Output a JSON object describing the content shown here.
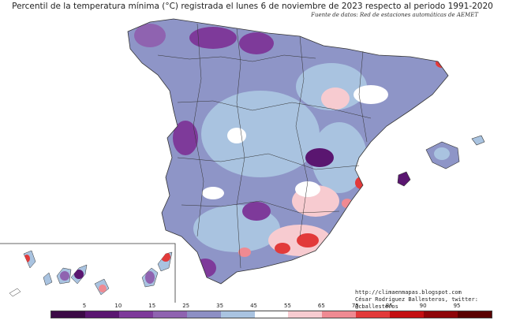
{
  "map": {
    "title": "Percentil de la temperatura mínima (°C) registrada el lunes 6 de noviembre de 2023 respecto al periodo 1991-2020",
    "source": "Fuente de datos: Red de estaciones automáticas de AEMET",
    "credit_url": "http://climaenmapas.blogspot.com",
    "credit_author": "César Rodríguez Ballesteros, twitter: @cballesteros",
    "legend": {
      "ticks": [
        "5",
        "10",
        "15",
        "25",
        "35",
        "45",
        "55",
        "65",
        "75",
        "85",
        "90",
        "95"
      ],
      "colors": [
        "#3b0a45",
        "#5a1670",
        "#7e3a9a",
        "#8f63b0",
        "#8d8fc4",
        "#a9c3e0",
        "#ffffff",
        "#f7cbd0",
        "#ef8a92",
        "#e23a3a",
        "#c40f12",
        "#8e0509",
        "#5a0000"
      ]
    }
  }
}
